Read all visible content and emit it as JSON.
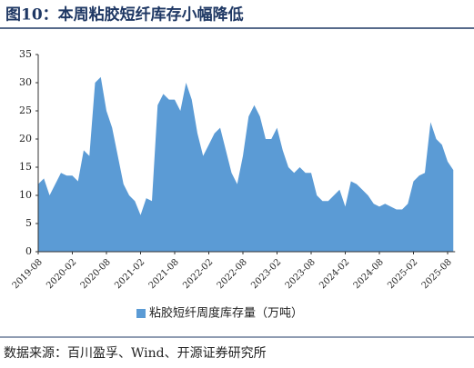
{
  "chart_data": {
    "type": "area",
    "title": "图10：本周粘胶短纤库存小幅降低",
    "source": "数据来源：百川盈孚、Wind、开源证券研究所",
    "series": [
      {
        "name": "粘胶短纤周度库存量（万吨）",
        "color": "#5b9bd5",
        "values": [
          12,
          13,
          10,
          12,
          14,
          13.5,
          13.5,
          12.5,
          18,
          17,
          30,
          31,
          25,
          22,
          17,
          12,
          10,
          9,
          6.5,
          9.5,
          9,
          26,
          28,
          27,
          27,
          25,
          30,
          27,
          21,
          17,
          19,
          21,
          22,
          18,
          14,
          12,
          17,
          24,
          26,
          24,
          20,
          20,
          22,
          18,
          15,
          14,
          15,
          14,
          14,
          10,
          9,
          9,
          10,
          11,
          8,
          12.5,
          12,
          11,
          10,
          8.5,
          8,
          8.5,
          8,
          7.5,
          7.5,
          8.5,
          12.5,
          13.5,
          14,
          23,
          20,
          19,
          16,
          14.5
        ]
      }
    ],
    "x": [
      "2019-08",
      "2019-09",
      "2019-10",
      "2019-11",
      "2019-12",
      "2020-01",
      "2020-02",
      "2020-03",
      "2020-04",
      "2020-05",
      "2020-06",
      "2020-07",
      "2020-08",
      "2020-09",
      "2020-10",
      "2020-11",
      "2020-12",
      "2021-01",
      "2021-02",
      "2021-03",
      "2021-04",
      "2021-05",
      "2021-06",
      "2021-07",
      "2021-08",
      "2021-09",
      "2021-10",
      "2021-11",
      "2021-12",
      "2022-01",
      "2022-02",
      "2022-03",
      "2022-04",
      "2022-05",
      "2022-06",
      "2022-07",
      "2022-08",
      "2022-09",
      "2022-10",
      "2022-11",
      "2022-12",
      "2023-01",
      "2023-02",
      "2023-03",
      "2023-04",
      "2023-05",
      "2023-06",
      "2023-07",
      "2023-08",
      "2023-09",
      "2023-10",
      "2023-11",
      "2023-12",
      "2024-01",
      "2024-02",
      "2024-03",
      "2024-04",
      "2024-05",
      "2024-06",
      "2024-07",
      "2024-08",
      "2024-09",
      "2024-10",
      "2024-11",
      "2024-12",
      "2025-01",
      "2025-02",
      "2025-03",
      "2025-04",
      "2025-05",
      "2025-06",
      "2025-07",
      "2025-08",
      "2025-09"
    ],
    "xticks": [
      "2019-08",
      "2020-02",
      "2020-08",
      "2021-02",
      "2021-08",
      "2022-02",
      "2022-08",
      "2023-02",
      "2023-08",
      "2024-02",
      "2024-08",
      "2025-02",
      "2025-08"
    ],
    "ylim": [
      0,
      35
    ],
    "yticks": [
      0,
      5,
      10,
      15,
      20,
      25,
      30,
      35
    ],
    "grid": false
  }
}
